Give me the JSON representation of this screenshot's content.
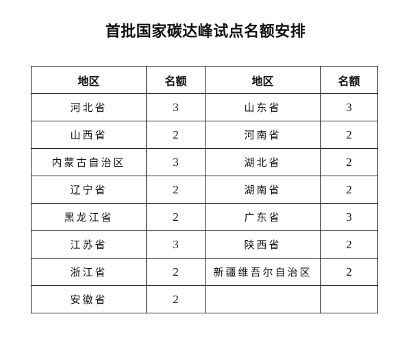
{
  "title": "首批国家碳达峰试点名额安排",
  "headers": [
    "地区",
    "名额",
    "地区",
    "名额"
  ],
  "rows": [
    [
      "河北省",
      "3",
      "山东省",
      "3"
    ],
    [
      "山西省",
      "2",
      "河南省",
      "2"
    ],
    [
      "内蒙古自治区",
      "3",
      "湖北省",
      "2"
    ],
    [
      "辽宁省",
      "2",
      "湖南省",
      "2"
    ],
    [
      "黑龙江省",
      "2",
      "广东省",
      "3"
    ],
    [
      "江苏省",
      "3",
      "陕西省",
      "2"
    ],
    [
      "浙江省",
      "2",
      "新疆维吾尔自治区",
      "2"
    ],
    [
      "安徽省",
      "2",
      "",
      ""
    ]
  ]
}
